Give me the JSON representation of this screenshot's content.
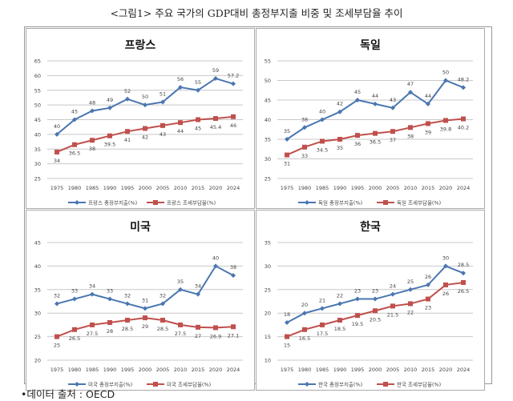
{
  "page_title": "<그림1> 주요 국가의 GDP대비 총정부지출 비중 및 조세부담율 추이",
  "source": "•데이터 출처 : OECD",
  "colors": {
    "spending": "#4a76b0",
    "tax": "#c0504d",
    "grid": "#c8c8c8"
  },
  "chart_data": [
    {
      "type": "line",
      "title": "프랑스",
      "categories": [
        "1975",
        "1980",
        "1985",
        "1990",
        "1995",
        "2000",
        "2005",
        "2010",
        "2015",
        "2020",
        "2024"
      ],
      "ylim": [
        25,
        65
      ],
      "ystep": 5,
      "grid": true,
      "legend_position": "bottom",
      "series": [
        {
          "name": "프랑스 총정부지출(%)",
          "labels_above": true,
          "values": [
            40,
            45,
            48,
            49,
            52,
            50,
            51,
            56,
            55,
            59,
            57.2
          ]
        },
        {
          "name": "프랑스 조세부담율(%)",
          "labels_above": false,
          "values": [
            34,
            36.5,
            38,
            39.5,
            41,
            42,
            43,
            44,
            45,
            45.4,
            46
          ]
        }
      ]
    },
    {
      "type": "line",
      "title": "독일",
      "categories": [
        "1975",
        "1980",
        "1985",
        "1990",
        "1995",
        "2000",
        "2005",
        "2010",
        "2015",
        "2020",
        "2024"
      ],
      "ylim": [
        25,
        55
      ],
      "ystep": 5,
      "grid": true,
      "legend_position": "bottom",
      "series": [
        {
          "name": "독일 총정부지출(%)",
          "labels_above": true,
          "values": [
            35,
            38,
            40,
            42,
            45,
            44,
            43,
            47,
            44,
            50,
            48.2
          ]
        },
        {
          "name": "독일 조세부담율(%)",
          "labels_above": false,
          "values": [
            31,
            33,
            34.5,
            35,
            36,
            36.5,
            37,
            38,
            39,
            39.8,
            40.2
          ]
        }
      ]
    },
    {
      "type": "line",
      "title": "미국",
      "categories": [
        "1975",
        "1980",
        "1985",
        "1990",
        "1995",
        "2000",
        "2005",
        "2010",
        "2015",
        "2020",
        "2024"
      ],
      "ylim": [
        20,
        45
      ],
      "ystep": 5,
      "grid": true,
      "legend_position": "bottom",
      "series": [
        {
          "name": "미국 총정부지출(%)",
          "labels_above": true,
          "values": [
            32,
            33,
            34,
            33,
            32,
            31,
            32,
            35,
            34,
            40,
            38
          ]
        },
        {
          "name": "미국 조세부담율(%)",
          "labels_above": false,
          "values": [
            25,
            26.5,
            27.5,
            28,
            28.5,
            29,
            28.5,
            27.5,
            27,
            26.9,
            27.1
          ]
        }
      ]
    },
    {
      "type": "line",
      "title": "한국",
      "categories": [
        "1975",
        "1980",
        "1985",
        "1990",
        "1995",
        "2000",
        "2005",
        "2010",
        "2015",
        "2020",
        "2024"
      ],
      "ylim": [
        10,
        35
      ],
      "ystep": 5,
      "grid": true,
      "legend_position": "bottom",
      "series": [
        {
          "name": "한국 총정부지출(%)",
          "labels_above": true,
          "values": [
            18,
            20,
            21,
            22,
            23,
            23,
            24,
            25,
            26,
            30,
            28.5
          ]
        },
        {
          "name": "한국 조세부담율(%)",
          "labels_above": false,
          "values": [
            15,
            16.5,
            17.5,
            18.5,
            19.5,
            20.5,
            21.5,
            22,
            23,
            26,
            26.5
          ]
        }
      ]
    }
  ]
}
